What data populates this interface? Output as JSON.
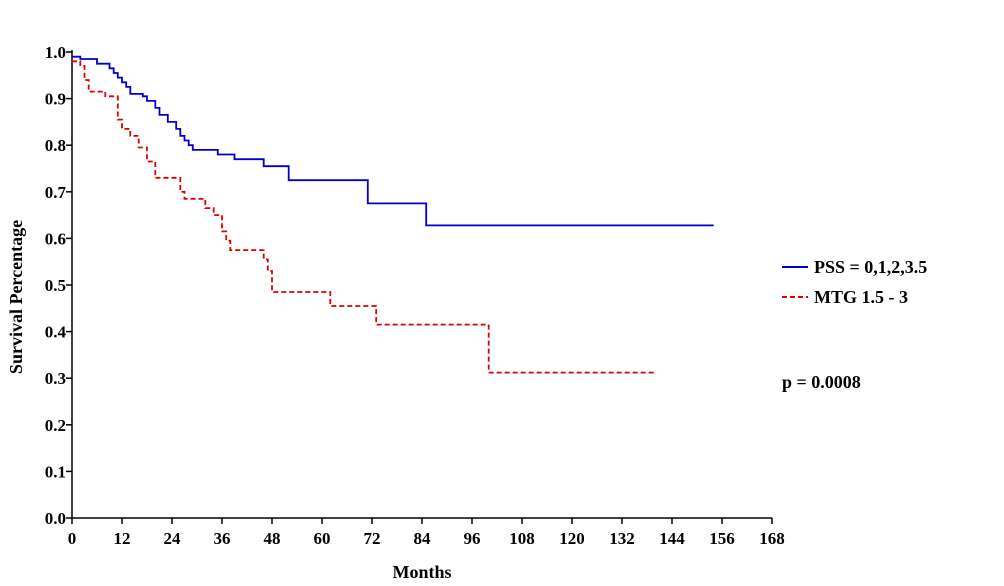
{
  "chart_data": {
    "type": "line",
    "step": true,
    "xlabel": "Months",
    "ylabel": "Survival Percentage",
    "xlim": [
      0,
      168
    ],
    "ylim": [
      0.0,
      1.0
    ],
    "x_ticks": [
      "0",
      "12",
      "24",
      "36",
      "48",
      "60",
      "72",
      "84",
      "96",
      "108",
      "120",
      "132",
      "144",
      "156",
      "168"
    ],
    "y_ticks": [
      "0.0",
      "0.1",
      "0.2",
      "0.3",
      "0.4",
      "0.5",
      "0.6",
      "0.7",
      "0.8",
      "0.9",
      "1.0"
    ],
    "grid": false,
    "legend_position": "right",
    "annotation": "p = 0.0008",
    "series": [
      {
        "name": "PSS = 0,1,2,3.5",
        "color": "#0000cc",
        "dash": "solid",
        "points": [
          [
            0,
            0.99
          ],
          [
            2,
            0.985
          ],
          [
            6,
            0.975
          ],
          [
            9,
            0.965
          ],
          [
            10,
            0.955
          ],
          [
            11,
            0.945
          ],
          [
            12,
            0.935
          ],
          [
            13,
            0.925
          ],
          [
            14,
            0.91
          ],
          [
            17,
            0.905
          ],
          [
            18,
            0.895
          ],
          [
            20,
            0.88
          ],
          [
            21,
            0.865
          ],
          [
            23,
            0.85
          ],
          [
            25,
            0.835
          ],
          [
            26,
            0.82
          ],
          [
            27,
            0.81
          ],
          [
            28,
            0.8
          ],
          [
            29,
            0.79
          ],
          [
            35,
            0.78
          ],
          [
            39,
            0.77
          ],
          [
            46,
            0.755
          ],
          [
            52,
            0.725
          ],
          [
            71,
            0.675
          ],
          [
            85,
            0.628
          ],
          [
            154,
            0.628
          ]
        ]
      },
      {
        "name": "MTG 1.5 - 3",
        "color": "#dd0000",
        "dash": "dashed",
        "points": [
          [
            0,
            0.98
          ],
          [
            2,
            0.97
          ],
          [
            3,
            0.94
          ],
          [
            4,
            0.915
          ],
          [
            8,
            0.905
          ],
          [
            11,
            0.855
          ],
          [
            12,
            0.835
          ],
          [
            14,
            0.82
          ],
          [
            16,
            0.795
          ],
          [
            18,
            0.765
          ],
          [
            20,
            0.73
          ],
          [
            26,
            0.7
          ],
          [
            27,
            0.685
          ],
          [
            32,
            0.665
          ],
          [
            34,
            0.65
          ],
          [
            36,
            0.615
          ],
          [
            37,
            0.595
          ],
          [
            38,
            0.575
          ],
          [
            46,
            0.555
          ],
          [
            47,
            0.53
          ],
          [
            48,
            0.485
          ],
          [
            62,
            0.455
          ],
          [
            73,
            0.415
          ],
          [
            100,
            0.312
          ],
          [
            140,
            0.312
          ]
        ]
      }
    ]
  }
}
